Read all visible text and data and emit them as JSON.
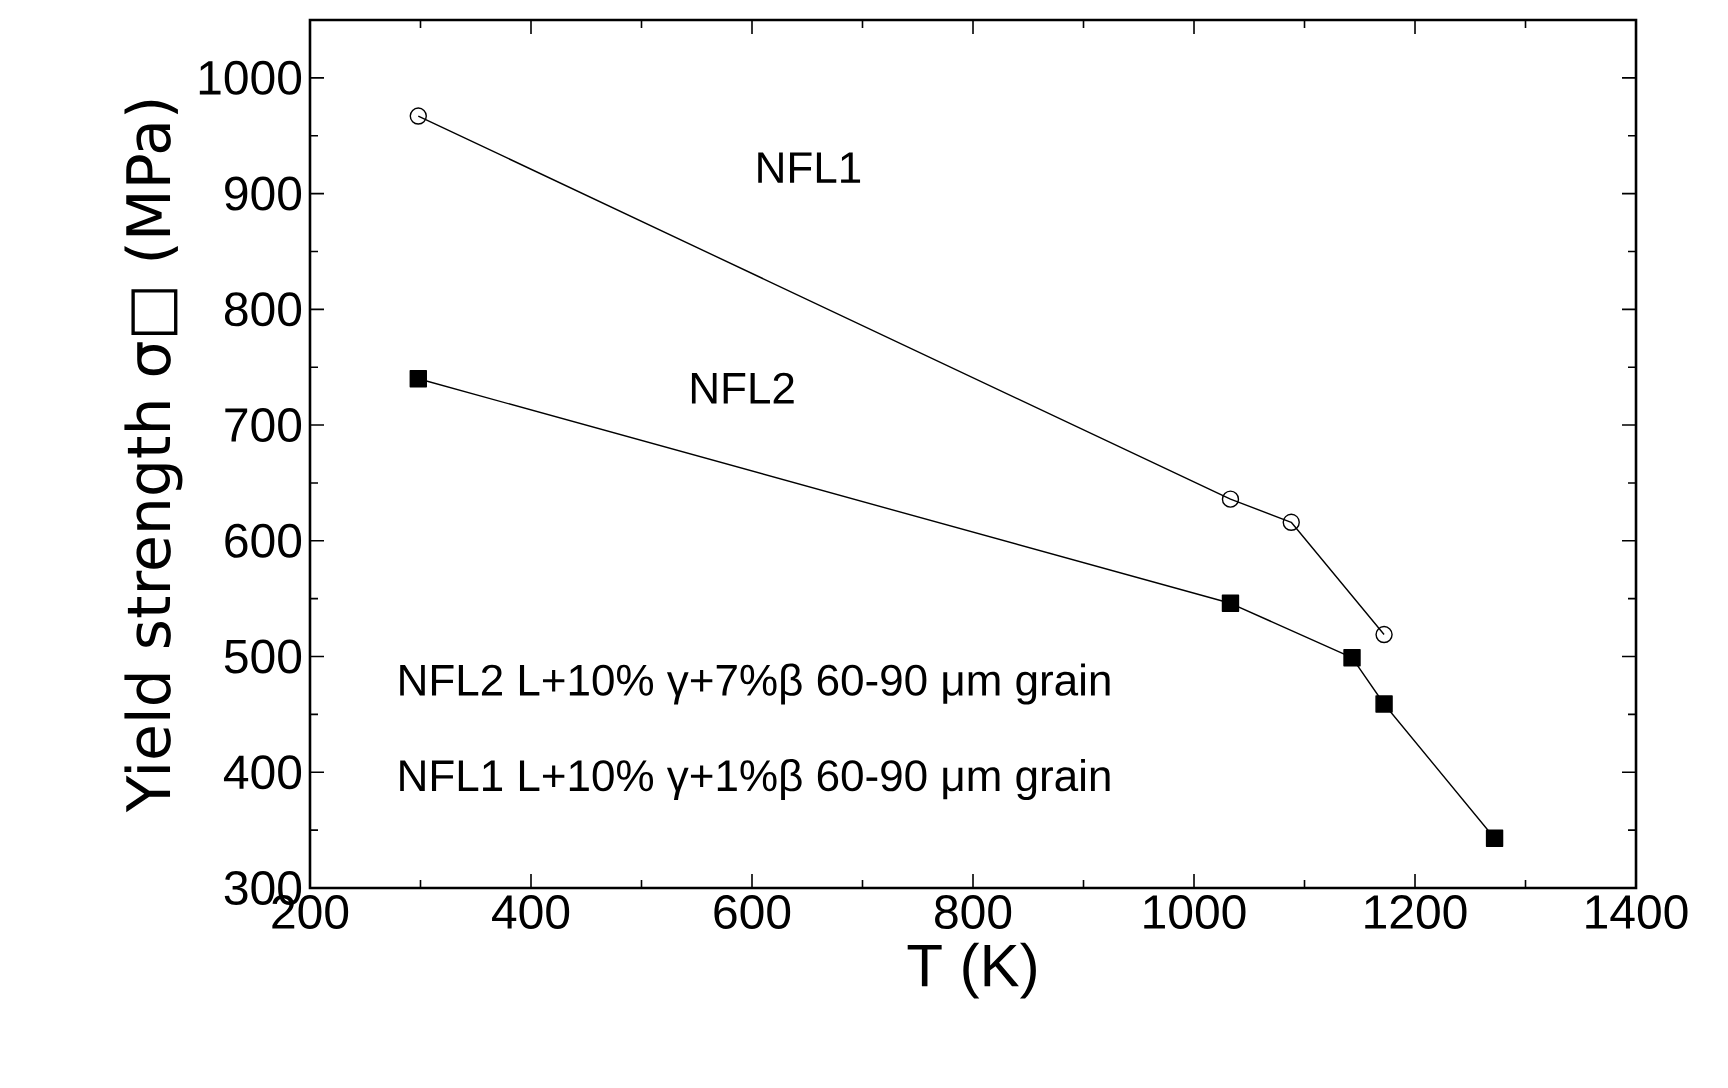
{
  "chart_data": {
    "type": "line",
    "xlabel": "T (K)",
    "ylabel": "Yield strength σ□ (MPa)",
    "xlim": [
      200,
      1400
    ],
    "xticks": [
      200,
      400,
      600,
      800,
      1000,
      1200,
      1400
    ],
    "ylim": [
      300,
      1050
    ],
    "yticks": [
      300,
      400,
      500,
      600,
      700,
      800,
      900,
      1000
    ],
    "series": [
      {
        "name": "NFL1",
        "color": "#000000",
        "marker": "circle",
        "x": [
          298,
          1033,
          1088,
          1172
        ],
        "values": [
          967,
          636,
          616,
          519
        ]
      },
      {
        "name": "NFL2",
        "color": "#000000",
        "marker": "square",
        "x": [
          298,
          1033,
          1143,
          1172,
          1272
        ],
        "values": [
          740,
          546,
          499,
          459,
          343
        ]
      }
    ],
    "annotations": [
      "NFL2 L+10% γ+7%β   60-90 μm grain",
      "NFL1 L+10% γ+1%β   60-90 μm grain"
    ],
    "grid": false,
    "legend": false,
    "line_style": "solid"
  }
}
